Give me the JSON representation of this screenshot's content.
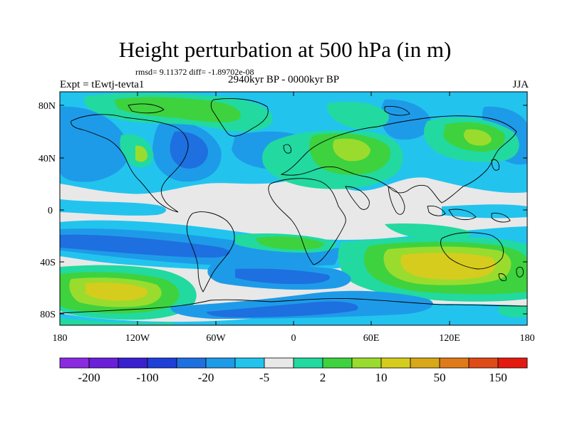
{
  "title": "Height perturbation at 500 hPa (in m)",
  "stats": "rmsd= 9.11372 diff= -1.89702e-08",
  "left_label": "Expt = tEwtj-tevta1",
  "center_label": "2940kyr BP - 0000kyr BP",
  "right_label": "JJA",
  "lat_ticks": [
    "80N",
    "40N",
    "0",
    "40S",
    "80S"
  ],
  "lon_ticks": [
    "180",
    "120W",
    "60W",
    "0",
    "60E",
    "120E",
    "180"
  ],
  "colorbar": {
    "colors": [
      "#8A2BE2",
      "#6A1FD8",
      "#3A1FD0",
      "#1E3FD8",
      "#1E6FE0",
      "#1E9BE8",
      "#22C4EE",
      "#E8E8E8",
      "#22D9A0",
      "#3ED23E",
      "#9ADC2E",
      "#D6CC1E",
      "#D8A818",
      "#E07A18",
      "#E04A18",
      "#E41A10"
    ],
    "labels": [
      "-200",
      "-100",
      "-20",
      "-5",
      "2",
      "10",
      "50",
      "150"
    ]
  }
}
